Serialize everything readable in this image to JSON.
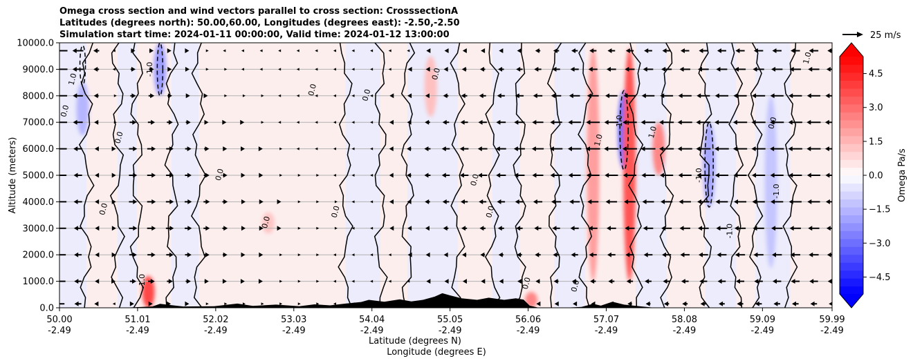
{
  "title_lines": [
    "Omega cross section and wind vectors parallel to cross section: CrosssectionA",
    "Latitudes (degrees north): 50.00,60.00, Longitudes (degrees east): -2.50,-2.50",
    "Simulation start time: 2024-01-11 00:00:00, Valid time: 2024-01-12 13:00:00"
  ],
  "chart_data": {
    "type": "heatmap",
    "subtype": "vertical cross section (omega fill, zero/±1 contours, wind vectors, terrain)",
    "ylabel": "Altitude (meters)",
    "xlabel_lines": [
      "Latitude (degrees N)",
      "Longitude (degrees E)"
    ],
    "ylim": [
      0,
      10000
    ],
    "y_ticks": [
      0,
      1000,
      2000,
      3000,
      4000,
      5000,
      6000,
      7000,
      8000,
      9000,
      10000
    ],
    "y_tick_labels": [
      "0.0",
      "1000.0",
      "2000.0",
      "3000.0",
      "4000.0",
      "5000.0",
      "6000.0",
      "7000.0",
      "8000.0",
      "9000.0",
      "10000.0"
    ],
    "grid_y": true,
    "xlim": [
      50.0,
      59.99
    ],
    "x_ticks": [
      50.0,
      51.01,
      52.02,
      53.03,
      54.04,
      55.05,
      56.06,
      57.07,
      58.08,
      59.09,
      59.99
    ],
    "x_tick_lat": [
      "50.00",
      "51.01",
      "52.02",
      "53.03",
      "54.04",
      "55.05",
      "56.06",
      "57.07",
      "58.08",
      "59.09",
      "59.99"
    ],
    "x_tick_lon": [
      "-2.49",
      "-2.49",
      "-2.49",
      "-2.49",
      "-2.49",
      "-2.49",
      "-2.49",
      "-2.49",
      "-2.49",
      "-2.49",
      "-2.49"
    ],
    "colorbar": {
      "label": "Omega Pa/s",
      "range": [
        -5.25,
        5.25
      ],
      "step": 0.35,
      "extend": "both",
      "ticks": [
        4.5,
        3.0,
        1.5,
        0.0,
        -1.5,
        -3.0,
        -4.5
      ],
      "tick_labels": [
        "4.5",
        "3.0",
        "1.5",
        "0.0",
        "−1.5",
        "−3.0",
        "−4.5"
      ],
      "colormap": "bwr"
    },
    "quiver_key": {
      "label": "25 m/s",
      "speed": 25
    },
    "contour_levels": [
      -1.0,
      0.0,
      1.0
    ],
    "contour_labels_seen": [
      "0.0",
      "1.0",
      "-1.0"
    ],
    "omega_features": [
      {
        "lat": 51.15,
        "z_min": 0,
        "z_max": 1200,
        "omega": 3.8
      },
      {
        "lat": 51.3,
        "z_min": 8000,
        "z_max": 10000,
        "omega": -2.0
      },
      {
        "lat": 50.3,
        "z_min": 6500,
        "z_max": 8500,
        "omega": -1.5
      },
      {
        "lat": 52.7,
        "z_min": 2800,
        "z_max": 3600,
        "omega": 1.2
      },
      {
        "lat": 54.8,
        "z_min": 7200,
        "z_max": 9500,
        "omega": 1.3
      },
      {
        "lat": 56.1,
        "z_min": 0,
        "z_max": 600,
        "omega": 2.5
      },
      {
        "lat": 56.9,
        "z_min": 1000,
        "z_max": 9800,
        "omega": 2.0
      },
      {
        "lat": 57.3,
        "z_min": 5200,
        "z_max": 8200,
        "omega": -3.0
      },
      {
        "lat": 57.37,
        "z_min": 1000,
        "z_max": 9800,
        "omega": 3.5
      },
      {
        "lat": 57.75,
        "z_min": 5000,
        "z_max": 7000,
        "omega": 2.5
      },
      {
        "lat": 58.4,
        "z_min": 3800,
        "z_max": 7000,
        "omega": -1.8
      },
      {
        "lat": 59.2,
        "z_min": 1500,
        "z_max": 8000,
        "omega": -1.2
      }
    ],
    "wind_vectors": [
      {
        "lat": 50.0,
        "u_profile": [
          -15,
          -18,
          -19,
          -20,
          -21,
          -21,
          -22,
          -23,
          -23,
          -24,
          -24
        ]
      },
      {
        "lat": 51.0,
        "u_profile": [
          4,
          11,
          13,
          14,
          14,
          14,
          14,
          12,
          10,
          9,
          8
        ]
      },
      {
        "lat": 52.0,
        "u_profile": [
          2,
          6,
          8,
          9,
          9,
          8,
          7,
          5,
          3,
          1,
          0
        ]
      },
      {
        "lat": 53.0,
        "u_profile": [
          1,
          1,
          1,
          2,
          2,
          1,
          0,
          -1,
          -1,
          -2,
          -2
        ]
      },
      {
        "lat": 54.0,
        "u_profile": [
          -1,
          -1,
          -1,
          -1,
          -1,
          -1,
          -1,
          -1,
          -1,
          -1,
          -1
        ]
      },
      {
        "lat": 55.0,
        "u_profile": [
          -2,
          -4,
          -6,
          -8,
          -10,
          -12,
          -12,
          -10,
          -8,
          -6,
          -4
        ]
      },
      {
        "lat": 56.0,
        "u_profile": [
          -4,
          -6,
          -8,
          -10,
          -13,
          -16,
          -17,
          -16,
          -13,
          -10,
          -7
        ]
      },
      {
        "lat": 57.0,
        "u_profile": [
          -6,
          -9,
          -12,
          -14,
          -17,
          -20,
          -22,
          -21,
          -18,
          -14,
          -11
        ]
      },
      {
        "lat": 58.0,
        "u_profile": [
          -8,
          -11,
          -14,
          -16,
          -18,
          -20,
          -22,
          -22,
          -20,
          -16,
          -13
        ]
      },
      {
        "lat": 59.0,
        "u_profile": [
          -10,
          -13,
          -15,
          -17,
          -19,
          -20,
          -21,
          -21,
          -20,
          -17,
          -14
        ]
      },
      {
        "lat": 59.99,
        "u_profile": [
          -10,
          -13,
          -15,
          -17,
          -19,
          -20,
          -21,
          -21,
          -20,
          -17,
          -14
        ]
      }
    ],
    "terrain": [
      {
        "lat": 50.0,
        "z": 0
      },
      {
        "lat": 50.8,
        "z": 0
      },
      {
        "lat": 51.2,
        "z": 50
      },
      {
        "lat": 51.3,
        "z": 150
      },
      {
        "lat": 51.6,
        "z": 50
      },
      {
        "lat": 52.0,
        "z": 60
      },
      {
        "lat": 52.3,
        "z": 160
      },
      {
        "lat": 52.5,
        "z": 70
      },
      {
        "lat": 52.8,
        "z": 120
      },
      {
        "lat": 53.1,
        "z": 60
      },
      {
        "lat": 53.3,
        "z": 130
      },
      {
        "lat": 53.5,
        "z": 90
      },
      {
        "lat": 53.7,
        "z": 160
      },
      {
        "lat": 53.9,
        "z": 220
      },
      {
        "lat": 54.0,
        "z": 300
      },
      {
        "lat": 54.2,
        "z": 230
      },
      {
        "lat": 54.4,
        "z": 320
      },
      {
        "lat": 54.55,
        "z": 240
      },
      {
        "lat": 54.7,
        "z": 300
      },
      {
        "lat": 54.85,
        "z": 420
      },
      {
        "lat": 54.95,
        "z": 550
      },
      {
        "lat": 55.05,
        "z": 470
      },
      {
        "lat": 55.2,
        "z": 360
      },
      {
        "lat": 55.4,
        "z": 300
      },
      {
        "lat": 55.55,
        "z": 380
      },
      {
        "lat": 55.75,
        "z": 300
      },
      {
        "lat": 55.9,
        "z": 360
      },
      {
        "lat": 56.0,
        "z": 310
      },
      {
        "lat": 56.08,
        "z": 80
      },
      {
        "lat": 56.2,
        "z": 0
      },
      {
        "lat": 56.5,
        "z": 0
      },
      {
        "lat": 56.75,
        "z": 30
      },
      {
        "lat": 56.9,
        "z": 150
      },
      {
        "lat": 57.0,
        "z": 80
      },
      {
        "lat": 57.15,
        "z": 230
      },
      {
        "lat": 57.3,
        "z": 120
      },
      {
        "lat": 57.5,
        "z": 60
      },
      {
        "lat": 57.7,
        "z": 0
      },
      {
        "lat": 59.99,
        "z": 0
      }
    ]
  }
}
